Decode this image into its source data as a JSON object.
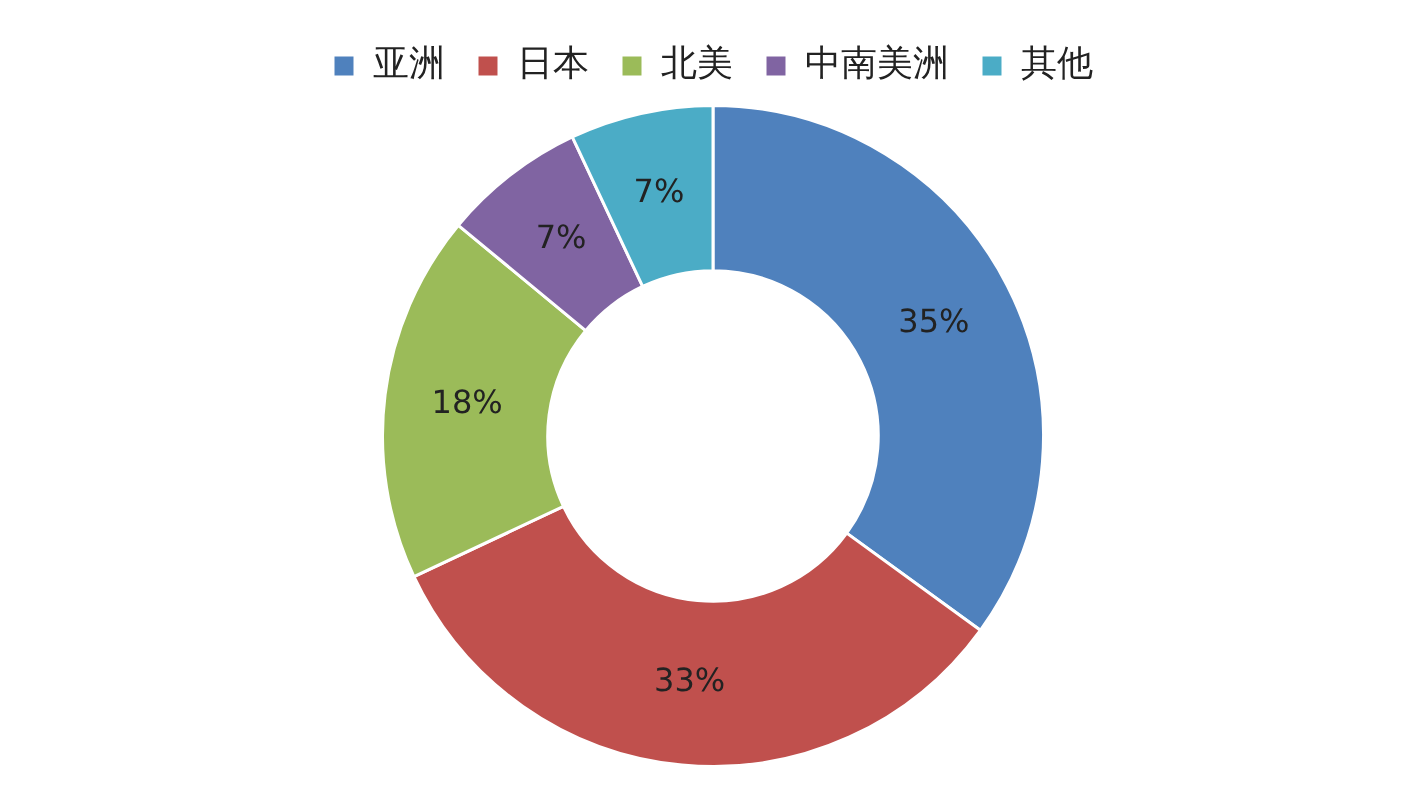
{
  "chart_data": {
    "type": "donut",
    "categories": [
      "亚洲",
      "日本",
      "北美",
      "中南美洲",
      "其他"
    ],
    "values": [
      35,
      33,
      18,
      7,
      7
    ],
    "colors": [
      "#4f81bd",
      "#c0504d",
      "#9bbb59",
      "#8064a2",
      "#4bacc6"
    ],
    "value_labels": [
      "35%",
      "33%",
      "18%",
      "7%",
      "7%"
    ],
    "legend": "top"
  }
}
